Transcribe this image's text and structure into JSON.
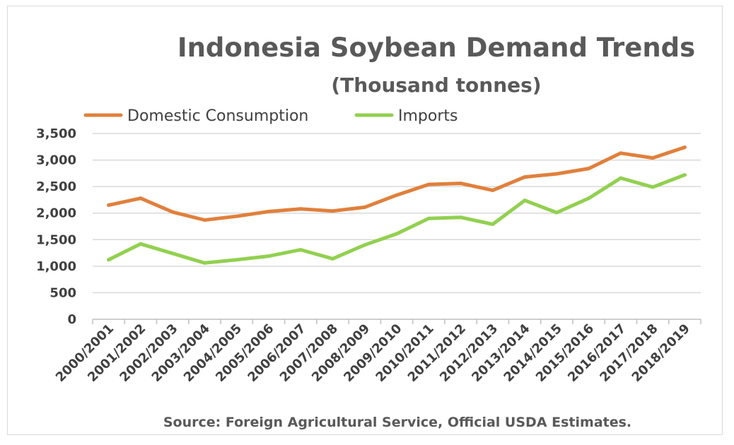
{
  "chart_data": {
    "type": "line",
    "title": "Indonesia Soybean Demand Trends",
    "subtitle": "(Thousand tonnes)",
    "source": "Source: Foreign Agricultural Service, Official USDA Estimates.",
    "xlabel": "",
    "ylabel": "",
    "ylim": [
      0,
      3500
    ],
    "yticks": [
      0,
      500,
      1000,
      1500,
      2000,
      2500,
      3000,
      3500
    ],
    "ytick_labels": [
      "0",
      "500",
      "1,000",
      "1,500",
      "2,000",
      "2,500",
      "3,000",
      "3,500"
    ],
    "grid": true,
    "legend_position": "top-left",
    "categories": [
      "2000/2001",
      "2001/2002",
      "2002/2003",
      "2003/2004",
      "2004/2005",
      "2005/2006",
      "2006/2007",
      "2007/2008",
      "2008/2009",
      "2009/2010",
      "2010/2011",
      "2011/2012",
      "2012/2013",
      "2013/2014",
      "2014/2015",
      "2015/2016",
      "2016/2017",
      "2017/2018",
      "2018/2019"
    ],
    "series": [
      {
        "name": "Domestic Consumption",
        "color": "#e0803c",
        "values": [
          2150,
          2280,
          2020,
          1870,
          1940,
          2030,
          2080,
          2040,
          2110,
          2340,
          2540,
          2560,
          2430,
          2680,
          2740,
          2840,
          3130,
          3040,
          3240
        ]
      },
      {
        "name": "Imports",
        "color": "#92d050",
        "values": [
          1120,
          1420,
          1240,
          1060,
          1120,
          1190,
          1310,
          1140,
          1400,
          1610,
          1900,
          1920,
          1790,
          2240,
          2010,
          2280,
          2660,
          2490,
          2720
        ]
      }
    ]
  }
}
